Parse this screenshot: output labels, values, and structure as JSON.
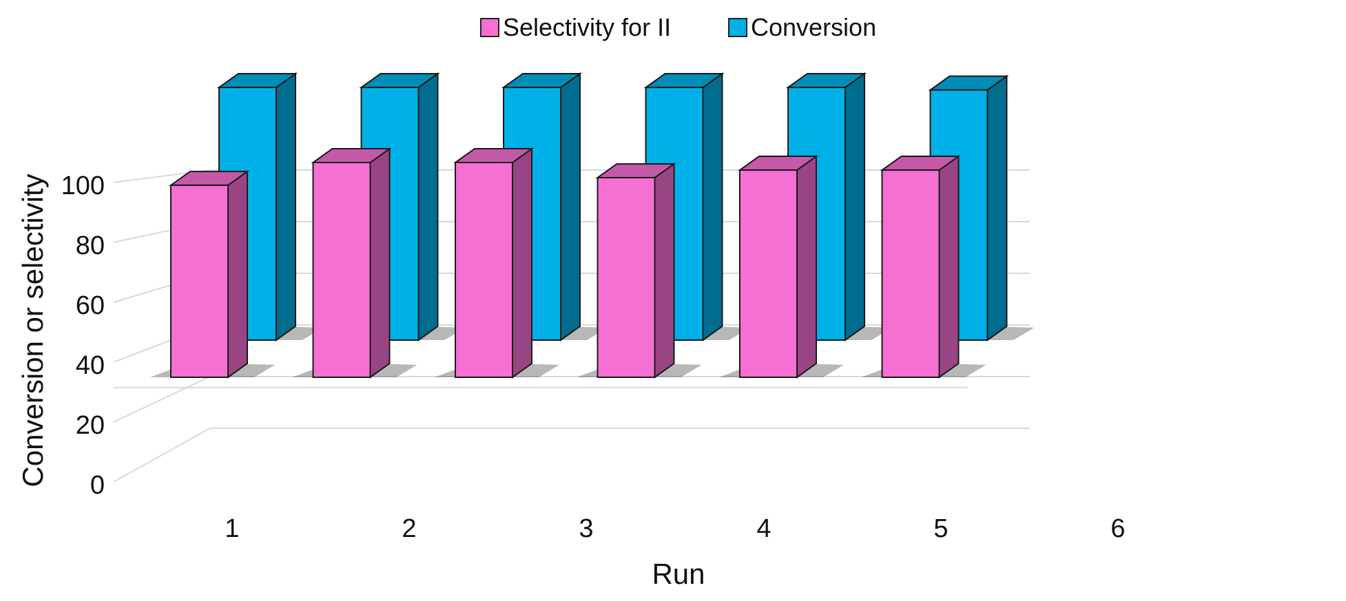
{
  "chart_data": {
    "type": "bar",
    "title": "",
    "xlabel": "Run",
    "ylabel": "Conversion or selectivity",
    "categories": [
      "1",
      "2",
      "3",
      "4",
      "5",
      "6"
    ],
    "ylim": [
      0,
      100
    ],
    "yticks": [
      0,
      20,
      40,
      60,
      80,
      100
    ],
    "grid": true,
    "legend_position": "top",
    "three_d": true,
    "series": [
      {
        "name": "Selectivity for II",
        "color": "#f66fd3",
        "values": [
          76,
          85,
          85,
          79,
          82,
          82
        ]
      },
      {
        "name": "Conversion",
        "color": "#00b0e6",
        "values": [
          100,
          100,
          100,
          100,
          100,
          99
        ]
      }
    ]
  }
}
